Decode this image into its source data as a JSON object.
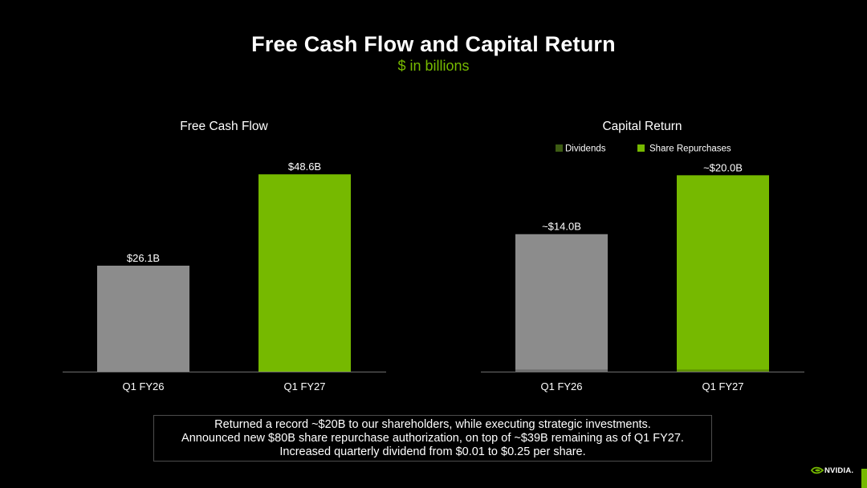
{
  "header": {
    "title": "Free Cash Flow and Capital Return",
    "subtitle": "$ in billions"
  },
  "colors": {
    "green": "#76b900",
    "gray": "#8c8c8c",
    "dark_green": "#3d5c13",
    "text": "#ffffff",
    "axis": "#6e6e6e",
    "border": "#4d4d4d"
  },
  "chart_data": [
    {
      "type": "bar",
      "title": "Free Cash Flow",
      "categories": [
        "Q1 FY26",
        "Q1 FY27"
      ],
      "values": [
        26.1,
        48.6
      ],
      "data_labels": [
        "$26.1B",
        "$48.6B"
      ],
      "bar_colors": [
        "#8c8c8c",
        "#76b900"
      ],
      "ylim": [
        0,
        52
      ],
      "grid": false
    },
    {
      "type": "bar",
      "stacked": true,
      "title": "Capital Return",
      "categories": [
        "Q1 FY26",
        "Q1 FY27"
      ],
      "series": [
        {
          "name": "Dividends",
          "values": [
            0.2,
            0.2
          ]
        },
        {
          "name": "Share Repurchases",
          "values": [
            13.8,
            19.8
          ]
        }
      ],
      "totals": [
        14.0,
        20.0
      ],
      "data_labels": [
        "~$14.0B",
        "~$20.0B"
      ],
      "bar_colors": [
        "#8c8c8c",
        "#76b900"
      ],
      "legend": [
        {
          "name": "Dividends",
          "color": "#3d5c13"
        },
        {
          "name": "Share Repurchases",
          "color": "#76b900"
        }
      ],
      "legend_position": "top",
      "ylim": [
        0,
        21.5
      ],
      "grid": false
    }
  ],
  "callout": {
    "lines": [
      "Returned a record ~$20B to our shareholders, while executing strategic investments.",
      "Announced new $80B share repurchase authorization, on top of ~$39B remaining as of Q1 FY27.",
      "Increased quarterly dividend from $0.01 to $0.25 per share."
    ]
  },
  "brand": {
    "logo_text": "NVIDIA."
  }
}
